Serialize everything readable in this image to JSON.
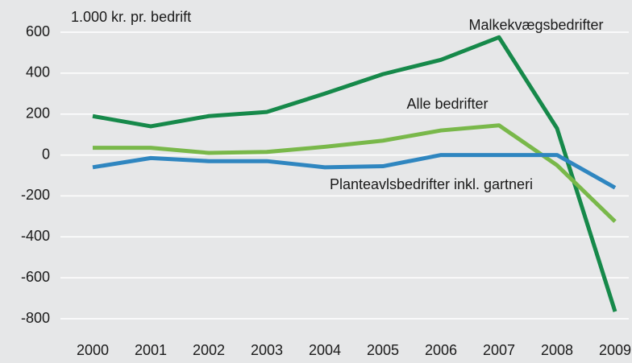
{
  "chart_data": {
    "type": "line",
    "y_label": "1.000 kr. pr. bedrift",
    "categories": [
      "2000",
      "2001",
      "2002",
      "2003",
      "2004",
      "2005",
      "2006",
      "2007",
      "2008",
      "2009"
    ],
    "series": [
      {
        "name": "Malkekvægsbedrifter",
        "color": "#16894a",
        "values": [
          190,
          140,
          190,
          210,
          300,
          395,
          465,
          575,
          130,
          -765
        ]
      },
      {
        "name": "Alle bedrifter",
        "color": "#79b84a",
        "values": [
          35,
          35,
          10,
          15,
          40,
          70,
          120,
          145,
          -50,
          -325
        ]
      },
      {
        "name": "Planteavlsbedrifter inkl. gartneri",
        "color": "#2f86c0",
        "values": [
          -60,
          -15,
          -30,
          -30,
          -60,
          -55,
          0,
          0,
          0,
          -160
        ]
      }
    ],
    "ylim": [
      -800,
      600
    ],
    "yticks": [
      600,
      400,
      200,
      0,
      -200,
      -400,
      -600,
      -800
    ],
    "grid": true
  }
}
